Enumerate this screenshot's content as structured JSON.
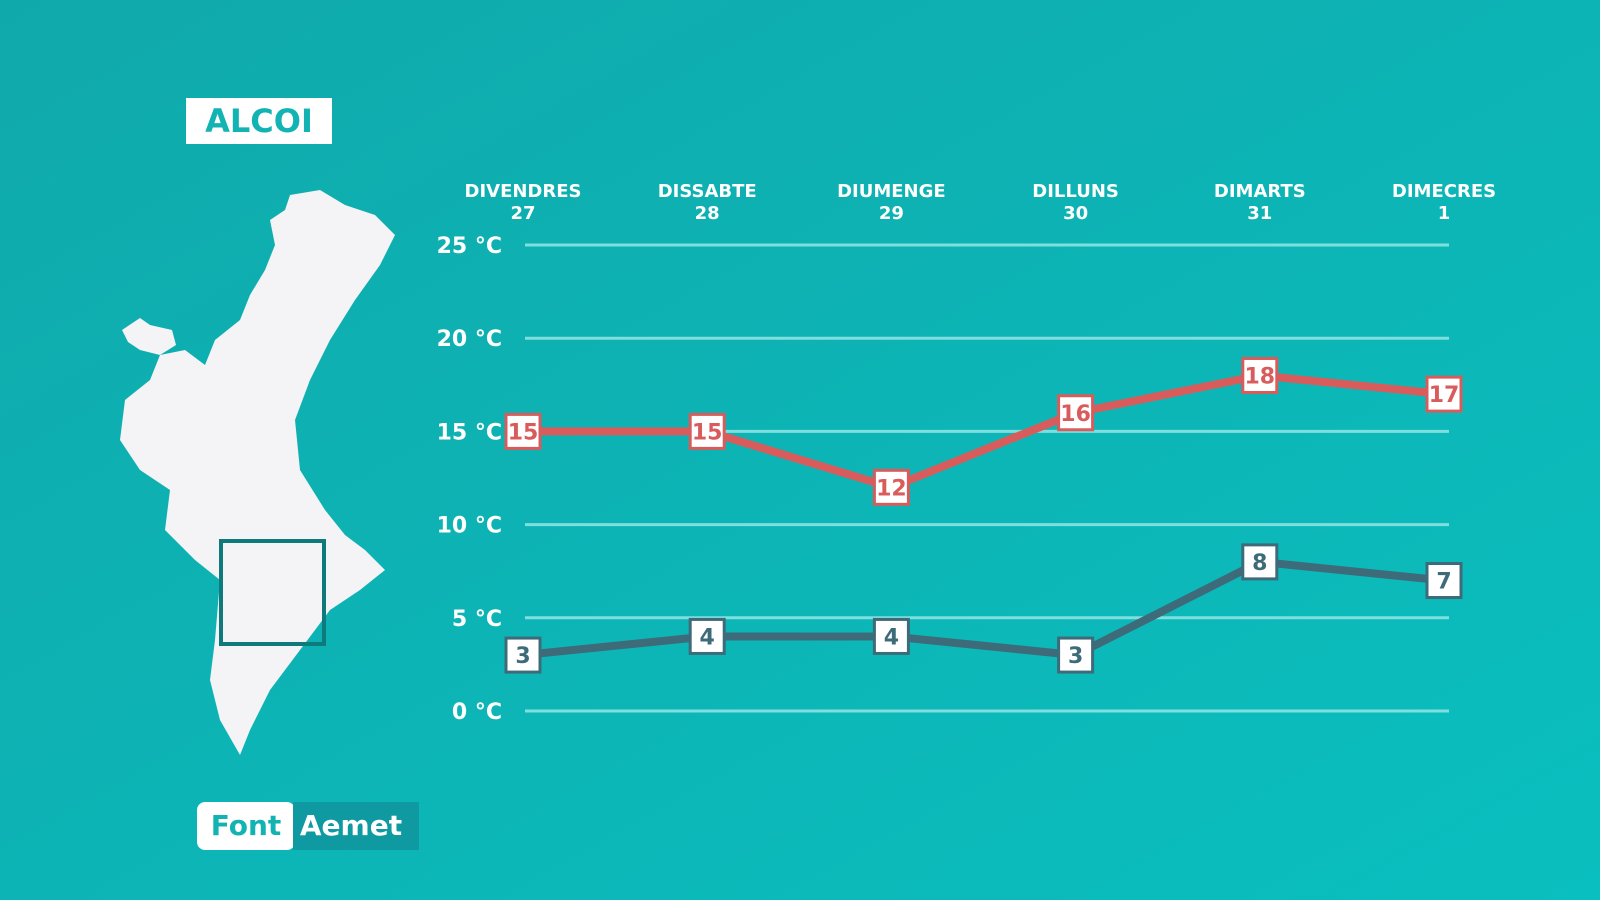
{
  "title": "ALCOI",
  "source": {
    "label": "Font",
    "value": "Aemet"
  },
  "chart_data": {
    "type": "line",
    "categories": [
      "DIVENDRES",
      "DISSABTE",
      "DIUMENGE",
      "DILLUNS",
      "DIMARTS",
      "DIMECRES"
    ],
    "dates": [
      "27",
      "28",
      "29",
      "30",
      "31",
      "1"
    ],
    "series": [
      {
        "color": "#d95c5c",
        "values": [
          15,
          15,
          12,
          16,
          18,
          17
        ]
      },
      {
        "color": "#3e6b79",
        "values": [
          3,
          4,
          4,
          3,
          8,
          7
        ]
      }
    ],
    "ylim": [
      0,
      25
    ],
    "yticks": [
      {
        "value": 0,
        "label": "0 °C"
      },
      {
        "value": 5,
        "label": "5 °C"
      },
      {
        "value": 10,
        "label": "10 °C"
      },
      {
        "value": 15,
        "label": "15 °C"
      },
      {
        "value": 20,
        "label": "20 °C"
      },
      {
        "value": 25,
        "label": "25 °C"
      }
    ],
    "grid": true
  }
}
